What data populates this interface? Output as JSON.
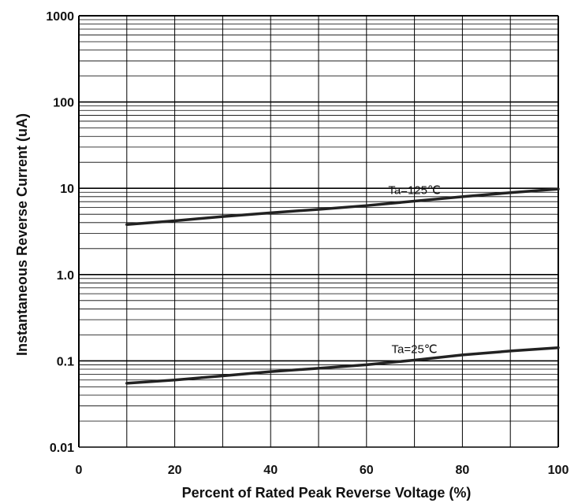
{
  "chart_data": {
    "type": "line",
    "title": "",
    "xlabel": "Percent of Rated Peak Reverse Voltage (%)",
    "ylabel": "Instantaneous Reverse Current (uA)",
    "xlim": [
      0,
      100
    ],
    "ylim": [
      0.01,
      1000
    ],
    "yscale": "log",
    "grid": true,
    "x_tick_labels": [
      "0",
      "20",
      "40",
      "60",
      "80",
      "100"
    ],
    "y_tick_labels": [
      "0.01",
      "0.1",
      "1.0",
      "10",
      "100",
      "1000"
    ],
    "series": [
      {
        "name": "Ta=125℃",
        "x": [
          10,
          20,
          30,
          40,
          50,
          60,
          70,
          80,
          90,
          100
        ],
        "values": [
          3.8,
          4.2,
          4.7,
          5.2,
          5.7,
          6.3,
          7.1,
          8.0,
          8.9,
          9.8
        ]
      },
      {
        "name": "Ta=25℃",
        "x": [
          10,
          20,
          30,
          40,
          50,
          60,
          70,
          80,
          90,
          100
        ],
        "values": [
          0.055,
          0.06,
          0.067,
          0.075,
          0.082,
          0.09,
          0.102,
          0.117,
          0.13,
          0.142
        ]
      }
    ],
    "colors": {
      "line": "#222222",
      "grid": "#000000"
    }
  }
}
